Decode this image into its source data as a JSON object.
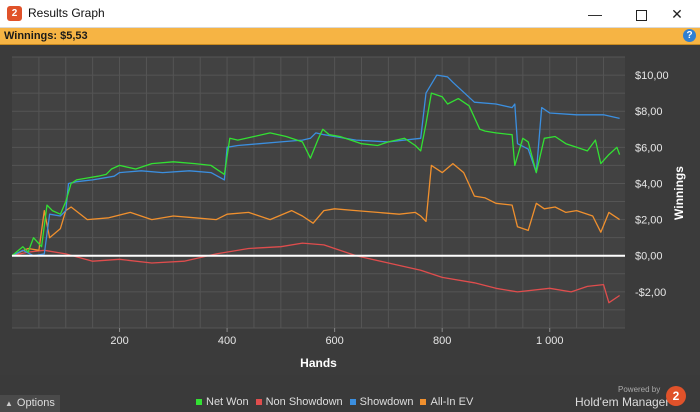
{
  "window": {
    "title": "Results Graph",
    "minimize_glyph": "—",
    "close_glyph": "✕",
    "app_icon_text": "2"
  },
  "summary": {
    "winnings_text": "Winnings: $5,53",
    "help_glyph": "?"
  },
  "footer": {
    "options_label": "Options",
    "powered_by": "Powered by",
    "brand": "Hold'em Manager",
    "brand_logo_text": "2"
  },
  "colors": {
    "net_won": "#33e033",
    "non_showdown": "#e04d4d",
    "showdown": "#3b8fe0",
    "all_in_ev": "#f0902e",
    "zero_line": "#ffffff",
    "plot_bg": "#424242",
    "grid": "#555555"
  },
  "chart_data": {
    "type": "line",
    "title": "",
    "xlabel": "Hands",
    "ylabel": "Winnings",
    "xlim": [
      0,
      1140
    ],
    "ylim": [
      -4,
      11
    ],
    "x_ticks": [
      200,
      400,
      600,
      800,
      1000
    ],
    "x_tick_labels": [
      "200",
      "400",
      "600",
      "800",
      "1 000"
    ],
    "y_ticks": [
      10,
      8,
      6,
      4,
      2,
      0,
      -2
    ],
    "y_tick_labels": [
      "$10,00",
      "$8,00",
      "$6,00",
      "$4,00",
      "$2,00",
      "$0,00",
      "-$2,00"
    ],
    "grid": true,
    "legend_position": "bottom",
    "series": [
      {
        "name": "Net Won",
        "x": [
          0,
          20,
          30,
          40,
          55,
          65,
          75,
          90,
          100,
          110,
          120,
          140,
          160,
          175,
          185,
          200,
          230,
          260,
          300,
          340,
          370,
          385,
          395,
          405,
          420,
          450,
          480,
          510,
          540,
          555,
          570,
          578,
          590,
          610,
          630,
          650,
          680,
          700,
          730,
          750,
          760,
          770,
          780,
          800,
          810,
          830,
          850,
          870,
          880,
          900,
          930,
          935,
          950,
          960,
          975,
          990,
          1010,
          1030,
          1050,
          1070,
          1085,
          1095,
          1110,
          1125,
          1130
        ],
        "values": [
          0.0,
          0.5,
          0.2,
          1.0,
          0.5,
          2.8,
          2.5,
          2.3,
          3.0,
          4.0,
          4.2,
          4.3,
          4.4,
          4.5,
          4.8,
          5.0,
          4.8,
          5.1,
          5.2,
          5.1,
          5.0,
          4.7,
          4.5,
          6.5,
          6.4,
          6.6,
          6.8,
          6.6,
          6.3,
          5.4,
          6.5,
          7.0,
          6.7,
          6.6,
          6.4,
          6.2,
          6.1,
          6.3,
          6.5,
          6.1,
          5.8,
          7.3,
          9.0,
          8.8,
          8.4,
          8.7,
          8.3,
          7.0,
          6.9,
          6.8,
          6.7,
          5.0,
          6.5,
          6.3,
          4.6,
          6.5,
          6.6,
          6.2,
          6.0,
          5.8,
          6.4,
          5.1,
          5.6,
          6.0,
          5.6
        ]
      },
      {
        "name": "Non Showdown",
        "x": [
          0,
          30,
          60,
          100,
          150,
          200,
          260,
          320,
          380,
          440,
          500,
          540,
          580,
          600,
          640,
          700,
          760,
          800,
          860,
          900,
          940,
          1000,
          1040,
          1070,
          1100,
          1110,
          1130
        ],
        "values": [
          0.0,
          0.2,
          0.3,
          0.1,
          -0.3,
          -0.2,
          -0.4,
          -0.3,
          0.1,
          0.4,
          0.5,
          0.7,
          0.6,
          0.4,
          0.0,
          -0.4,
          -0.8,
          -1.2,
          -1.5,
          -1.8,
          -2.0,
          -1.8,
          -2.0,
          -1.7,
          -1.6,
          -2.6,
          -2.2
        ]
      },
      {
        "name": "Showdown",
        "x": [
          0,
          20,
          40,
          60,
          70,
          90,
          100,
          105,
          120,
          150,
          190,
          200,
          240,
          280,
          330,
          370,
          395,
          400,
          420,
          460,
          500,
          540,
          555,
          565,
          580,
          600,
          640,
          700,
          760,
          770,
          790,
          810,
          820,
          860,
          900,
          930,
          935,
          940,
          960,
          975,
          985,
          1000,
          1050,
          1100,
          1130
        ],
        "values": [
          0.0,
          0.3,
          0.0,
          0.1,
          2.3,
          2.2,
          2.5,
          4.0,
          4.1,
          4.2,
          4.4,
          4.6,
          4.7,
          4.6,
          4.7,
          4.6,
          4.2,
          6.0,
          6.1,
          6.2,
          6.3,
          6.4,
          6.5,
          6.8,
          6.7,
          6.6,
          6.4,
          6.3,
          6.5,
          9.0,
          10.0,
          9.9,
          9.6,
          8.5,
          8.4,
          8.2,
          8.4,
          6.2,
          5.9,
          4.6,
          8.2,
          7.9,
          7.8,
          7.8,
          7.6
        ]
      },
      {
        "name": "All-In EV",
        "x": [
          0,
          30,
          50,
          60,
          70,
          90,
          100,
          110,
          140,
          180,
          220,
          260,
          300,
          340,
          380,
          400,
          440,
          480,
          520,
          540,
          560,
          580,
          600,
          640,
          680,
          720,
          750,
          760,
          770,
          780,
          800,
          820,
          840,
          860,
          880,
          900,
          930,
          940,
          960,
          975,
          990,
          1010,
          1030,
          1050,
          1080,
          1095,
          1110,
          1130
        ],
        "values": [
          0.0,
          0.4,
          0.3,
          2.5,
          1.0,
          1.5,
          2.5,
          2.7,
          2.0,
          2.1,
          2.4,
          2.0,
          2.2,
          2.1,
          2.0,
          2.3,
          2.4,
          2.0,
          2.5,
          2.2,
          1.8,
          2.5,
          2.6,
          2.5,
          2.4,
          2.3,
          2.4,
          2.2,
          1.9,
          5.0,
          4.6,
          5.1,
          4.6,
          3.3,
          3.2,
          2.9,
          2.8,
          1.6,
          1.4,
          2.9,
          2.6,
          2.7,
          2.4,
          2.5,
          2.2,
          1.3,
          2.4,
          2.0
        ]
      }
    ]
  }
}
